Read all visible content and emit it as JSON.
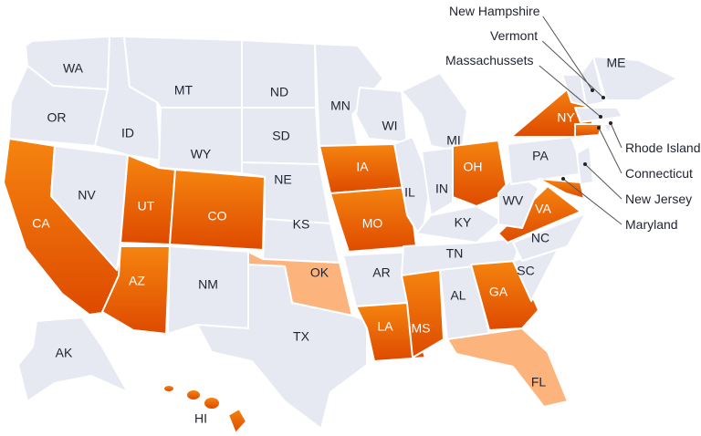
{
  "colors": {
    "default": "#e6e9f2",
    "highlight_top": "#f5840f",
    "highlight_bottom": "#de4a00",
    "light": "#fdb47c"
  },
  "states": [
    {
      "id": "WA",
      "label": "WA",
      "status": "none"
    },
    {
      "id": "OR",
      "label": "OR",
      "status": "none"
    },
    {
      "id": "CA",
      "label": "CA",
      "status": "highlight"
    },
    {
      "id": "NV",
      "label": "NV",
      "status": "none"
    },
    {
      "id": "ID",
      "label": "ID",
      "status": "none"
    },
    {
      "id": "MT",
      "label": "MT",
      "status": "none"
    },
    {
      "id": "WY",
      "label": "WY",
      "status": "none"
    },
    {
      "id": "UT",
      "label": "UT",
      "status": "highlight"
    },
    {
      "id": "CO",
      "label": "CO",
      "status": "highlight"
    },
    {
      "id": "AZ",
      "label": "AZ",
      "status": "highlight"
    },
    {
      "id": "NM",
      "label": "NM",
      "status": "none"
    },
    {
      "id": "ND",
      "label": "ND",
      "status": "none"
    },
    {
      "id": "SD",
      "label": "SD",
      "status": "none"
    },
    {
      "id": "NE",
      "label": "NE",
      "status": "none"
    },
    {
      "id": "KS",
      "label": "KS",
      "status": "none"
    },
    {
      "id": "OK",
      "label": "OK",
      "status": "light"
    },
    {
      "id": "TX",
      "label": "TX",
      "status": "none"
    },
    {
      "id": "MN",
      "label": "MN",
      "status": "none"
    },
    {
      "id": "IA",
      "label": "IA",
      "status": "highlight"
    },
    {
      "id": "MO",
      "label": "MO",
      "status": "highlight"
    },
    {
      "id": "AR",
      "label": "AR",
      "status": "none"
    },
    {
      "id": "LA",
      "label": "LA",
      "status": "highlight"
    },
    {
      "id": "WI",
      "label": "WI",
      "status": "none"
    },
    {
      "id": "IL",
      "label": "IL",
      "status": "none"
    },
    {
      "id": "MI",
      "label": "MI",
      "status": "none"
    },
    {
      "id": "IN",
      "label": "IN",
      "status": "none"
    },
    {
      "id": "OH",
      "label": "OH",
      "status": "highlight"
    },
    {
      "id": "KY",
      "label": "KY",
      "status": "none"
    },
    {
      "id": "TN",
      "label": "TN",
      "status": "none"
    },
    {
      "id": "MS",
      "label": "MS",
      "status": "highlight"
    },
    {
      "id": "AL",
      "label": "AL",
      "status": "none"
    },
    {
      "id": "GA",
      "label": "GA",
      "status": "highlight"
    },
    {
      "id": "FL",
      "label": "FL",
      "status": "light"
    },
    {
      "id": "SC",
      "label": "SC",
      "status": "none"
    },
    {
      "id": "NC",
      "label": "NC",
      "status": "none"
    },
    {
      "id": "VA",
      "label": "VA",
      "status": "highlight"
    },
    {
      "id": "WV",
      "label": "WV",
      "status": "none"
    },
    {
      "id": "PA",
      "label": "PA",
      "status": "none"
    },
    {
      "id": "NY",
      "label": "NY",
      "status": "highlight"
    },
    {
      "id": "NJ",
      "label": "",
      "status": "none"
    },
    {
      "id": "MD",
      "label": "",
      "status": "highlight"
    },
    {
      "id": "ME",
      "label": "ME",
      "status": "none"
    },
    {
      "id": "NH",
      "label": "",
      "status": "none"
    },
    {
      "id": "VT",
      "label": "",
      "status": "none"
    },
    {
      "id": "MA",
      "label": "",
      "status": "none"
    },
    {
      "id": "CT",
      "label": "",
      "status": "highlight"
    },
    {
      "id": "RI",
      "label": "",
      "status": "none"
    },
    {
      "id": "AK",
      "label": "AK",
      "status": "none"
    },
    {
      "id": "HI",
      "label": "HI",
      "status": "highlight"
    }
  ],
  "callouts": [
    {
      "id": "NH",
      "label": "New Hampshire"
    },
    {
      "id": "VT",
      "label": "Vermont"
    },
    {
      "id": "MA",
      "label": "Massachussets"
    },
    {
      "id": "RI",
      "label": "Rhode Island"
    },
    {
      "id": "CT",
      "label": "Connecticut"
    },
    {
      "id": "NJ",
      "label": "New Jersey"
    },
    {
      "id": "MD",
      "label": "Maryland"
    }
  ]
}
